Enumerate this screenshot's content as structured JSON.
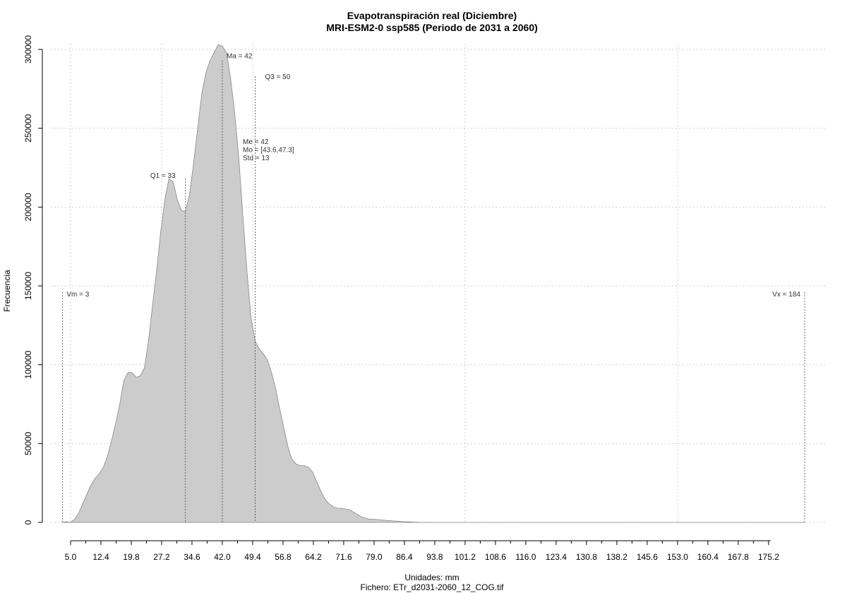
{
  "chart_data": {
    "type": "area",
    "title": "Evapotranspiración real (Diciembre)",
    "subtitle": "MRI-ESM2-0 ssp585 (Periodo de 2031 a 2060)",
    "xlabel": "Unidades: mm",
    "ylabel": "Frecuencia",
    "caption": "Fichero: ETr_d2031-2060_12_COG.tif",
    "xlim": [
      5.0,
      184
    ],
    "ylim": [
      0,
      300000
    ],
    "grid": true,
    "x_ticks": [
      "5.0",
      "12.4",
      "19.8",
      "27.2",
      "34.6",
      "42.0",
      "49.4",
      "56.8",
      "64.2",
      "71.6",
      "79.0",
      "86.4",
      "93.8",
      "101.2",
      "108.6",
      "116.0",
      "123.4",
      "130.8",
      "138.2",
      "145.6",
      "153.0",
      "160.4",
      "167.8",
      "175.2"
    ],
    "y_ticks": [
      "0",
      "50000",
      "100000",
      "150000",
      "200000",
      "250000",
      "300000"
    ],
    "x": [
      3,
      4,
      5,
      6,
      7,
      8,
      9,
      10,
      11,
      12,
      13,
      14,
      15,
      16,
      17,
      18,
      19,
      20,
      21,
      22,
      23,
      24,
      25,
      26,
      27,
      28,
      29,
      30,
      31,
      32,
      33,
      34,
      35,
      36,
      37,
      38,
      39,
      40,
      41,
      42,
      43,
      44,
      45,
      46,
      47,
      48,
      49,
      50,
      51,
      52,
      53,
      54,
      55,
      56,
      57,
      58,
      59,
      60,
      61,
      62,
      63,
      64,
      65,
      66,
      67,
      68,
      69,
      70,
      71,
      72,
      73,
      74,
      75,
      76,
      77,
      78,
      79,
      80,
      81,
      82,
      83,
      84,
      85,
      86,
      87,
      88,
      89,
      90,
      92,
      94,
      96,
      98,
      100,
      102,
      105,
      110,
      120,
      140,
      160,
      184
    ],
    "y": [
      0,
      500,
      0,
      2000,
      6000,
      12000,
      18000,
      24000,
      28000,
      31000,
      35000,
      42000,
      52000,
      63000,
      75000,
      90000,
      95000,
      95000,
      92000,
      93000,
      98000,
      115000,
      138000,
      160000,
      185000,
      205000,
      218000,
      216000,
      205000,
      198000,
      197000,
      208000,
      228000,
      250000,
      272000,
      285000,
      293000,
      298000,
      303000,
      302000,
      298000,
      282000,
      260000,
      232000,
      195000,
      160000,
      130000,
      115000,
      110000,
      107000,
      103000,
      95000,
      85000,
      72000,
      60000,
      48000,
      40000,
      37000,
      36000,
      36000,
      35000,
      32000,
      26000,
      20000,
      15000,
      12000,
      10000,
      9000,
      9000,
      8500,
      8000,
      6500,
      5000,
      3500,
      2500,
      2000,
      2000,
      1800,
      1500,
      1300,
      1100,
      900,
      700,
      500,
      400,
      300,
      200,
      100,
      50,
      0,
      0,
      0,
      0,
      0,
      0,
      0,
      0,
      0,
      0,
      0
    ],
    "vlines": [
      {
        "label": "Vm = 3",
        "x": 3
      },
      {
        "label": "Q1 = 33",
        "x": 33
      },
      {
        "label": "Ma = 42",
        "x": 42
      },
      {
        "label": "Q3 = 50",
        "x": 50
      },
      {
        "label": "Vx = 184",
        "x": 184
      }
    ],
    "stats_block": [
      "Me = 42",
      "Mo = [43.6,47.3]",
      "Std = 13"
    ],
    "fill_color": "#cccccc",
    "line_color": "#888888"
  }
}
